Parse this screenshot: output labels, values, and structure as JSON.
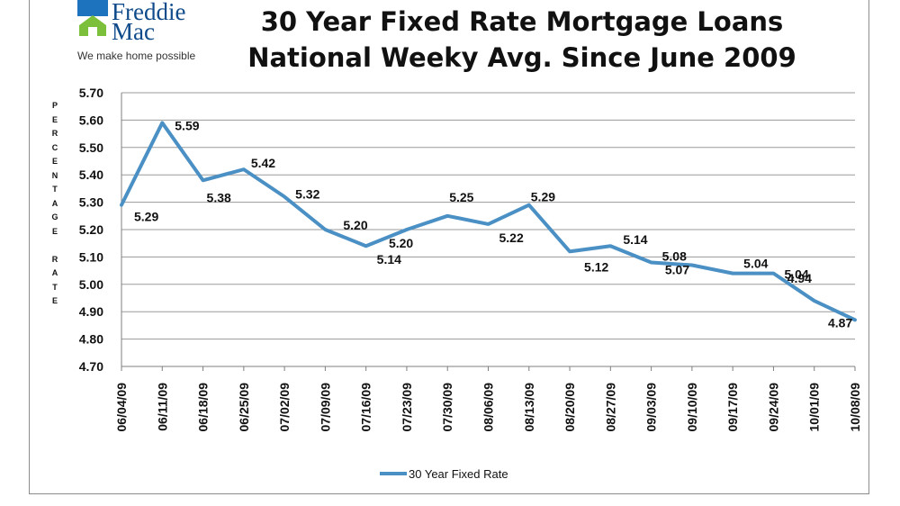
{
  "logo": {
    "name_line1": "Freddie",
    "name_line2": "Mac",
    "tagline": "We make home possible",
    "roof_color": "#1e73be",
    "house_color": "#7bbf3a"
  },
  "title_line1": "30 Year Fixed Rate Mortgage Loans",
  "title_line2": "National Weeky Avg. Since June 2009",
  "ylabel": "PERCENTAGE RATE",
  "chart_data": {
    "type": "line",
    "title": "30 Year Fixed Rate Mortgage Loans National Weeky Avg. Since June 2009",
    "xlabel": "",
    "ylabel": "PERCENTAGE RATE",
    "ylim": [
      4.7,
      5.7
    ],
    "yticks": [
      "4.70",
      "4.80",
      "4.90",
      "5.00",
      "5.10",
      "5.20",
      "5.30",
      "5.40",
      "5.50",
      "5.60",
      "5.70"
    ],
    "grid": true,
    "legend_position": "bottom",
    "line_color": "#4a90c4",
    "categories": [
      "06/04/09",
      "06/11/09",
      "06/18/09",
      "06/25/09",
      "07/02/09",
      "07/09/09",
      "07/16/09",
      "07/23/09",
      "07/30/09",
      "08/06/09",
      "08/13/09",
      "08/20/09",
      "08/27/09",
      "09/03/09",
      "09/10/09",
      "09/17/09",
      "09/24/09",
      "10/01/09",
      "10/08/09"
    ],
    "series": [
      {
        "name": "30 Year Fixed Rate",
        "values": [
          5.29,
          5.59,
          5.38,
          5.42,
          5.32,
          5.2,
          5.14,
          5.2,
          5.25,
          5.22,
          5.29,
          5.12,
          5.14,
          5.08,
          5.07,
          5.04,
          5.04,
          4.94,
          4.87
        ],
        "labels": [
          "5.29",
          "5.59",
          "5.38",
          "5.42",
          "5.32",
          "5.20",
          "5.14",
          "5.20",
          "5.25",
          "5.22",
          "5.29",
          "5.12",
          "5.14",
          "5.08",
          "5.07",
          "5.04",
          "5.04",
          "4.94",
          "4.87"
        ]
      }
    ]
  }
}
